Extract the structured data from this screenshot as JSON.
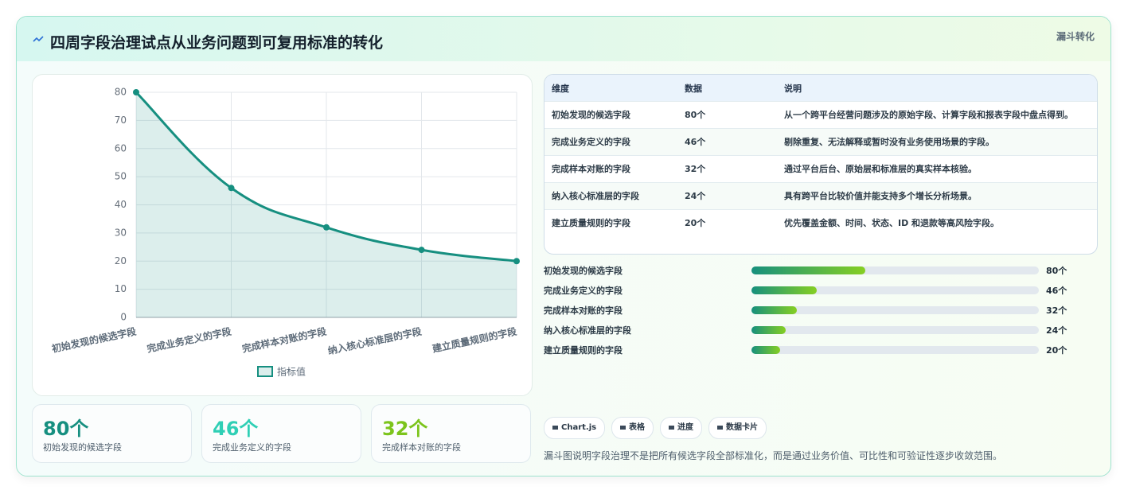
{
  "header": {
    "title": "四周字段治理试点从业务问题到可复用标准的转化",
    "badge": "漏斗转化"
  },
  "chart_data": {
    "type": "line",
    "categories": [
      "初始发现的候选字段",
      "完成业务定义的字段",
      "完成样本对账的字段",
      "纳入核心标准层的字段",
      "建立质量规则的字段"
    ],
    "series": [
      {
        "name": "指标值",
        "color": "#168f80",
        "values": [
          80,
          46,
          32,
          24,
          20
        ]
      }
    ],
    "ylim": [
      0,
      80
    ],
    "yticks": [
      0,
      10,
      20,
      30,
      40,
      50,
      60,
      70,
      80
    ],
    "grid": true,
    "legend": "bottom"
  },
  "cards": [
    {
      "text": "80个",
      "label": "初始发现的候选字段",
      "color": "#168f80"
    },
    {
      "text": "46个",
      "label": "完成业务定义的字段",
      "color": "#2fcfb5"
    },
    {
      "text": "32个",
      "label": "完成样本对账的字段",
      "color": "#7cc41c"
    }
  ],
  "table": {
    "columns": [
      "维度",
      "数据",
      "说明"
    ],
    "rows": [
      [
        "初始发现的候选字段",
        "80个",
        "从一个跨平台经营问题涉及的原始字段、计算字段和报表字段中盘点得到。"
      ],
      [
        "完成业务定义的字段",
        "46个",
        "剔除重复、无法解释或暂时没有业务使用场景的字段。"
      ],
      [
        "完成样本对账的字段",
        "32个",
        "通过平台后台、原始层和标准层的真实样本核验。"
      ],
      [
        "纳入核心标准层的字段",
        "24个",
        "具有跨平台比较价值并能支持多个增长分析场景。"
      ],
      [
        "建立质量规则的字段",
        "20个",
        "优先覆盖金额、时间、状态、ID 和退款等高风险字段。"
      ]
    ]
  },
  "progress": {
    "labels": [
      "初始发现的候选字段",
      "完成业务定义的字段",
      "完成样本对账的字段",
      "纳入核心标准层的字段",
      "建立质量规则的字段"
    ],
    "values": [
      80,
      46,
      32,
      24,
      20
    ],
    "value_labels": [
      "80个",
      "46个",
      "32个",
      "24个",
      "20个"
    ]
  },
  "tags": [
    "Chart.js",
    "表格",
    "进度",
    "数据卡片"
  ],
  "note": "漏斗图说明字段治理不是把所有候选字段全部标准化，而是通过业务价值、可比性和可验证性逐步收敛范围。"
}
